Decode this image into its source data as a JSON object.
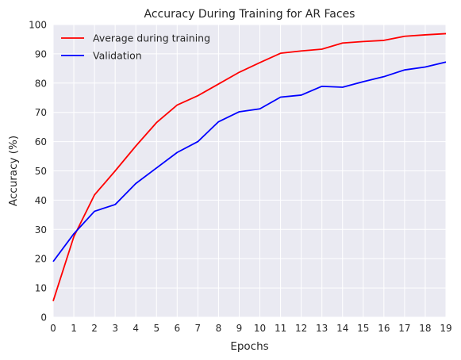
{
  "chart_data": {
    "type": "line",
    "title": "Accuracy During Training for AR Faces",
    "xlabel": "Epochs",
    "ylabel": "Accuracy (%)",
    "x": [
      0,
      1,
      2,
      3,
      4,
      5,
      6,
      7,
      8,
      9,
      10,
      11,
      12,
      13,
      14,
      15,
      16,
      17,
      18,
      19
    ],
    "xlim": [
      0,
      19
    ],
    "ylim": [
      0,
      100
    ],
    "yticks": [
      0,
      10,
      20,
      30,
      40,
      50,
      60,
      70,
      80,
      90,
      100
    ],
    "grid": true,
    "legend_position": "top-left",
    "series": [
      {
        "name": "Average during training",
        "color": "#ff0000",
        "values": [
          5.5,
          27.5,
          41.8,
          50.0,
          58.5,
          66.5,
          72.5,
          75.7,
          79.7,
          83.7,
          87.0,
          90.2,
          91.0,
          91.6,
          93.7,
          94.2,
          94.6,
          96.0,
          96.5,
          96.9
        ]
      },
      {
        "name": "Validation",
        "color": "#0000ff",
        "values": [
          19.0,
          28.5,
          36.2,
          38.5,
          45.7,
          51.0,
          56.3,
          60.0,
          66.8,
          70.2,
          71.2,
          75.2,
          75.9,
          78.9,
          78.6,
          80.5,
          82.2,
          84.5,
          85.5,
          87.2
        ]
      }
    ]
  }
}
